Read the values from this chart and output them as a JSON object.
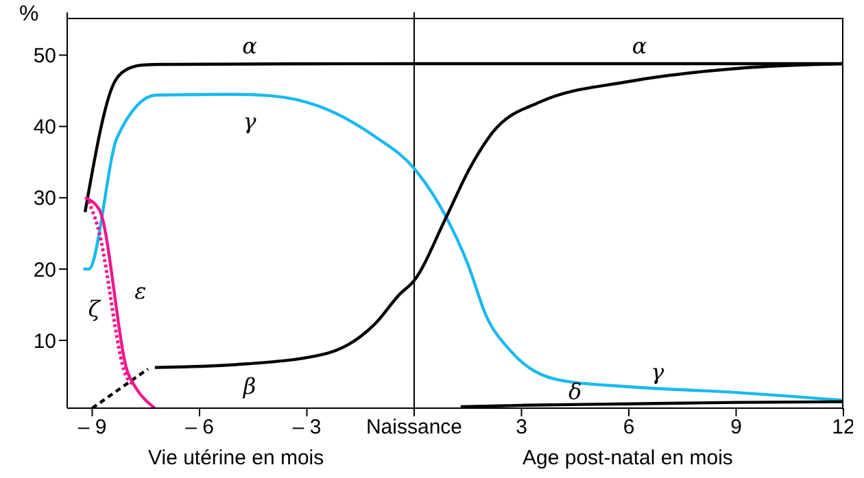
{
  "chart_data": {
    "type": "line",
    "ylabel": "%",
    "xlim": [
      -9.7,
      12
    ],
    "ylim": [
      0.5,
      56
    ],
    "xticks": [
      {
        "value": -9,
        "label": "– 9"
      },
      {
        "value": -6,
        "label": "– 6"
      },
      {
        "value": -3,
        "label": "– 3"
      },
      {
        "value": 0,
        "label": "Naissance"
      },
      3,
      6,
      9,
      12
    ],
    "yticks": [
      10,
      20,
      30,
      40,
      50
    ],
    "marker": "none",
    "ref_lines": [
      {
        "axis": "x",
        "value": 0,
        "color": "#000000"
      }
    ],
    "annotations": [
      "Vie utérine en mois",
      "Age post-natal en mois"
    ],
    "series": [
      {
        "name": "α",
        "color": "#000000",
        "x": [
          -9.2,
          -8.4,
          -8.1,
          -7.6,
          -7,
          0,
          6,
          12
        ],
        "values": [
          28,
          46,
          47.8,
          48.6,
          48.7,
          48.8,
          48.8,
          48.8
        ]
      },
      {
        "name": "γ",
        "color": "#1ab9f0",
        "x": [
          -9.25,
          -9.1,
          -8.3,
          -7.2,
          -5,
          -4,
          -2.7,
          -1.1,
          0,
          0.86,
          1.5,
          2,
          2.7,
          4.1,
          6,
          9,
          12
        ],
        "values": [
          20,
          20,
          38.5,
          44.4,
          44.5,
          44.3,
          42.9,
          38.6,
          34.1,
          27.6,
          20.7,
          13.6,
          8.5,
          4.4,
          3.5,
          2.7,
          1.6
        ]
      },
      {
        "name": "β",
        "color": "#000000",
        "x": [
          -7.25,
          -5,
          -2.5,
          -1.1,
          -0.4,
          0,
          0.87,
          1.54,
          2.2,
          3.5,
          6,
          9.2,
          12
        ],
        "values": [
          6.2,
          6.6,
          8.1,
          12.3,
          16.5,
          18.4,
          27,
          34,
          39.2,
          43.4,
          46.3,
          48.2,
          48.8
        ]
      },
      {
        "color": "#000000",
        "line_style": "dashed",
        "x": [
          -9,
          -7.44
        ],
        "values": [
          0.5,
          6
        ]
      },
      {
        "name": "ε",
        "color": "#f0168c",
        "x": [
          -9.2,
          -8.8,
          -8,
          -7.8,
          -7.25
        ],
        "values": [
          30,
          28.3,
          5.4,
          3.5,
          0.5
        ]
      },
      {
        "name": "ζ",
        "color": "#f0168c",
        "line_style": "dotted",
        "x": [
          -9.1,
          -8.85,
          -8.05,
          -7.85
        ],
        "values": [
          29.5,
          26,
          5,
          3.8
        ]
      },
      {
        "name": "δ",
        "color": "#000000",
        "x": [
          1.3,
          3,
          6,
          9,
          12
        ],
        "values": [
          0.7,
          0.9,
          1.1,
          1.3,
          1.4
        ]
      }
    ]
  }
}
